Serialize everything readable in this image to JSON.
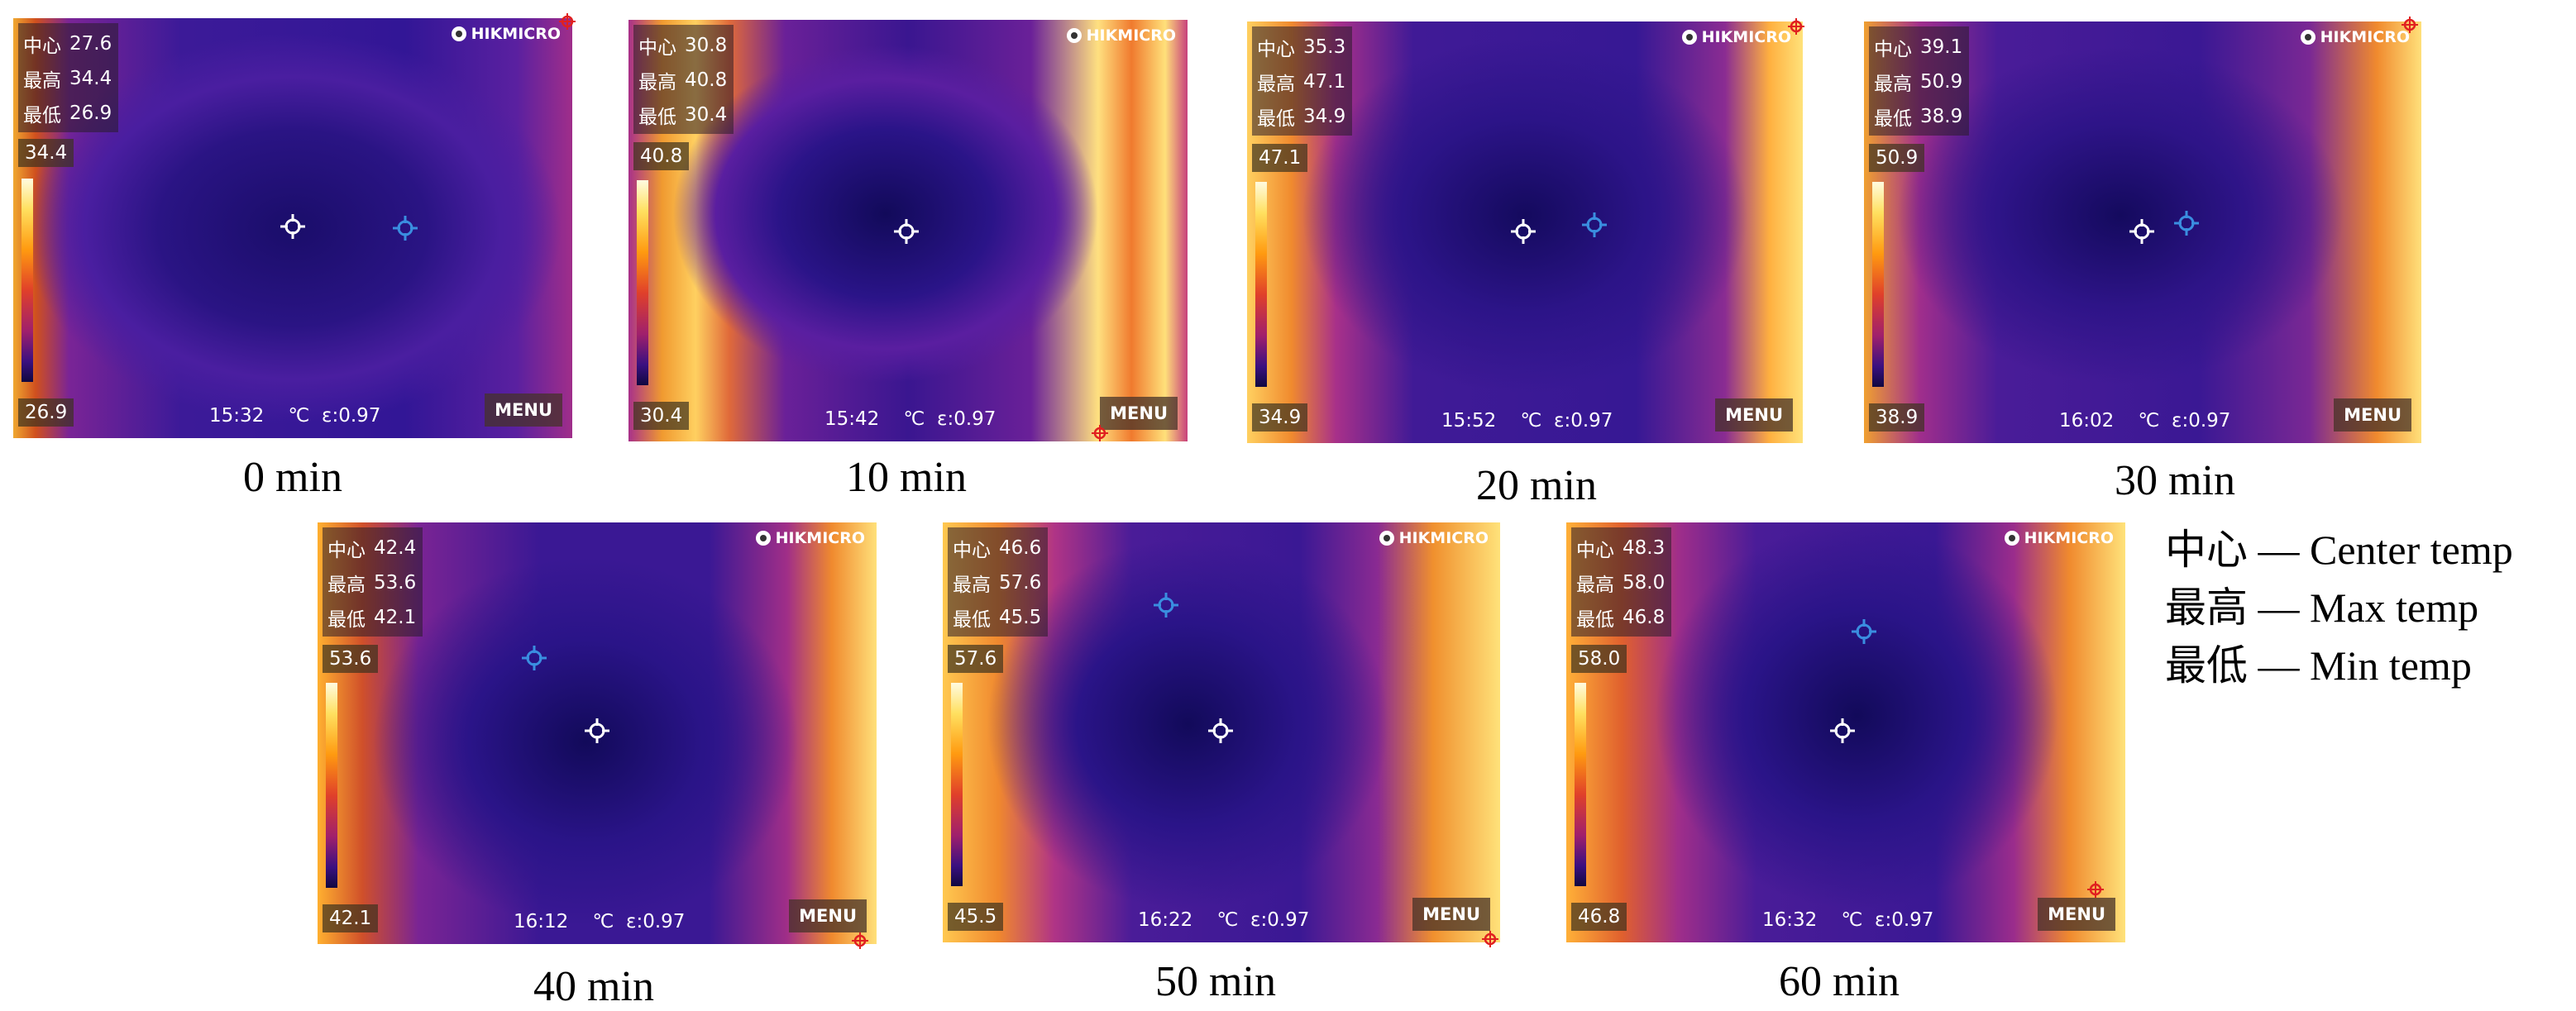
{
  "panels": [
    {
      "center": "27.6",
      "max": "34.4",
      "min": "26.9",
      "scale_top": "34.4",
      "scale_bottom": "26.9",
      "time": "15:32",
      "unit": "℃",
      "emissivity": "ε:0.97",
      "menu": "MENU",
      "brand": "HIKMICRO",
      "caption": "0 min"
    },
    {
      "center": "30.8",
      "max": "40.8",
      "min": "30.4",
      "scale_top": "40.8",
      "scale_bottom": "30.4",
      "time": "15:42",
      "unit": "℃",
      "emissivity": "ε:0.97",
      "menu": "MENU",
      "brand": "HIKMICRO",
      "caption": "10 min"
    },
    {
      "center": "35.3",
      "max": "47.1",
      "min": "34.9",
      "scale_top": "47.1",
      "scale_bottom": "34.9",
      "time": "15:52",
      "unit": "℃",
      "emissivity": "ε:0.97",
      "menu": "MENU",
      "brand": "HIKMICRO",
      "caption": "20 min"
    },
    {
      "center": "39.1",
      "max": "50.9",
      "min": "38.9",
      "scale_top": "50.9",
      "scale_bottom": "38.9",
      "time": "16:02",
      "unit": "℃",
      "emissivity": "ε:0.97",
      "menu": "MENU",
      "brand": "HIKMICRO",
      "caption": "30 min"
    },
    {
      "center": "42.4",
      "max": "53.6",
      "min": "42.1",
      "scale_top": "53.6",
      "scale_bottom": "42.1",
      "time": "16:12",
      "unit": "℃",
      "emissivity": "ε:0.97",
      "menu": "MENU",
      "brand": "HIKMICRO",
      "caption": "40 min"
    },
    {
      "center": "46.6",
      "max": "57.6",
      "min": "45.5",
      "scale_top": "57.6",
      "scale_bottom": "45.5",
      "time": "16:22",
      "unit": "℃",
      "emissivity": "ε:0.97",
      "menu": "MENU",
      "brand": "HIKMICRO",
      "caption": "50 min"
    },
    {
      "center": "48.3",
      "max": "58.0",
      "min": "46.8",
      "scale_top": "58.0",
      "scale_bottom": "46.8",
      "time": "16:32",
      "unit": "℃",
      "emissivity": "ε:0.97",
      "menu": "MENU",
      "brand": "HIKMICRO",
      "caption": "60 min"
    }
  ],
  "stat_labels": {
    "center": "中心",
    "max": "最高",
    "min": "最低"
  },
  "legend": [
    {
      "cn": "中心",
      "en": "Center temp"
    },
    {
      "cn": "最高",
      "en": "Max temp"
    },
    {
      "cn": "最低",
      "en": "Min temp"
    }
  ],
  "legend_dash": "—",
  "colors": {
    "hot": "#ffe36a",
    "warm": "#f08a1e",
    "mid": "#c6307a",
    "cool": "#5a1ea0",
    "cold": "#1a0d6a",
    "crosshair_white": "#ffffff",
    "crosshair_blue": "#3a8ee0",
    "marker_red": "#e02020"
  }
}
